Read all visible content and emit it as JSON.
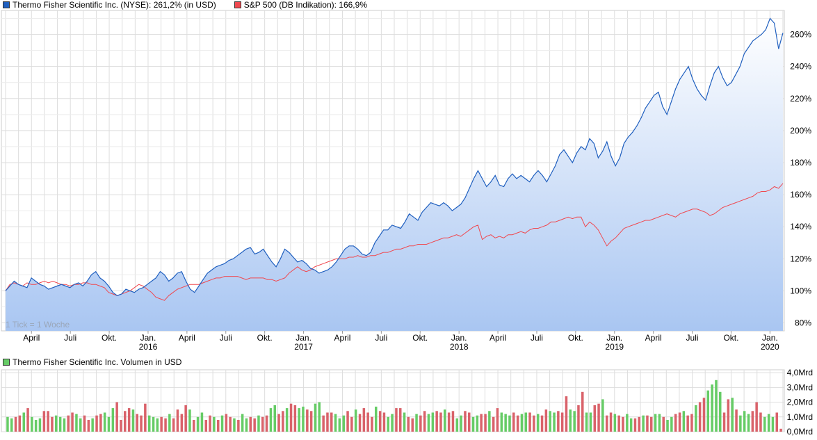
{
  "legend": {
    "series1": "Thermo Fisher Scientific Inc. (NYSE): 261,2% (in USD)",
    "series2": "S&P 500 (DB Indikation): 166,9%",
    "volume": "Thermo Fisher Scientific Inc. Volumen in USD"
  },
  "note": "1 Tick = 1 Woche",
  "colors": {
    "series1": "#1f5fbf",
    "series2": "#f0484f",
    "vol_up": "#66cc66",
    "vol_down": "#d9626a",
    "grid": "#dddddd"
  },
  "chart_data": [
    {
      "type": "area",
      "ylim": [
        75,
        275
      ],
      "ytick_labels": [
        "80%",
        "100%",
        "120%",
        "140%",
        "160%",
        "180%",
        "200%",
        "220%",
        "240%",
        "260%"
      ],
      "ytick_values": [
        80,
        100,
        120,
        140,
        160,
        180,
        200,
        220,
        240,
        260
      ],
      "xtick_months": [
        "April",
        "Juli",
        "Okt.",
        "Jan.",
        "April",
        "Juli",
        "Okt.",
        "Jan.",
        "April",
        "Juli",
        "Okt.",
        "Jan.",
        "April",
        "Juli",
        "Okt.",
        "Jan.",
        "April",
        "Juli",
        "Okt.",
        "Jan."
      ],
      "xtick_years": [
        "2016",
        "2017",
        "2018",
        "2019",
        "2020"
      ],
      "x_start": "2015-02",
      "x_end": "2020-02",
      "series": [
        {
          "name": "Thermo Fisher Scientific Inc. (NYSE): 261,2% (in USD)",
          "values": [
            100,
            103,
            106,
            104,
            103,
            102,
            108,
            106,
            104,
            103,
            101,
            102,
            103,
            104,
            103,
            102,
            104,
            105,
            103,
            106,
            110,
            112,
            108,
            106,
            103,
            99,
            97,
            98,
            101,
            100,
            99,
            101,
            102,
            104,
            106,
            108,
            112,
            110,
            106,
            108,
            111,
            112,
            106,
            101,
            99,
            103,
            107,
            111,
            113,
            115,
            116,
            117,
            119,
            120,
            122,
            124,
            126,
            127,
            123,
            124,
            126,
            122,
            118,
            115,
            120,
            126,
            124,
            121,
            118,
            119,
            117,
            114,
            113,
            111,
            112,
            113,
            115,
            118,
            122,
            126,
            128,
            128,
            126,
            123,
            122,
            124,
            130,
            134,
            138,
            138,
            141,
            140,
            139,
            143,
            148,
            146,
            144,
            149,
            152,
            155,
            154,
            153,
            155,
            153,
            150,
            152,
            154,
            158,
            164,
            170,
            175,
            170,
            165,
            168,
            172,
            166,
            165,
            170,
            173,
            170,
            172,
            170,
            168,
            172,
            175,
            172,
            168,
            173,
            178,
            185,
            188,
            184,
            180,
            186,
            190,
            188,
            195,
            192,
            183,
            187,
            193,
            184,
            178,
            183,
            192,
            196,
            199,
            203,
            208,
            214,
            218,
            222,
            224,
            215,
            210,
            218,
            226,
            232,
            236,
            240,
            232,
            226,
            222,
            219,
            228,
            236,
            240,
            233,
            228,
            230,
            235,
            240,
            248,
            252,
            256,
            258,
            260,
            263,
            270,
            267,
            251,
            261
          ]
        },
        {
          "name": "S&P 500 (DB Indikation): 166,9%",
          "values": [
            100,
            104,
            105,
            104,
            103,
            105,
            104,
            104,
            105,
            106,
            105,
            106,
            105,
            104,
            104,
            103,
            104,
            104,
            105,
            105,
            104,
            104,
            103,
            102,
            99,
            98,
            97,
            98,
            99,
            100,
            102,
            104,
            103,
            101,
            99,
            96,
            95,
            94,
            97,
            99,
            101,
            102,
            103,
            104,
            104,
            104,
            105,
            106,
            107,
            108,
            108,
            109,
            109,
            109,
            109,
            108,
            107,
            108,
            108,
            108,
            108,
            107,
            107,
            106,
            107,
            108,
            111,
            113,
            115,
            113,
            112,
            113,
            115,
            116,
            117,
            118,
            119,
            120,
            120,
            120,
            121,
            121,
            122,
            121,
            121,
            122,
            122,
            123,
            124,
            124,
            125,
            126,
            126,
            127,
            128,
            128,
            129,
            129,
            129,
            130,
            131,
            132,
            133,
            133,
            134,
            135,
            134,
            136,
            138,
            140,
            141,
            132,
            134,
            135,
            133,
            134,
            133,
            135,
            135,
            136,
            137,
            136,
            138,
            139,
            139,
            140,
            141,
            143,
            143,
            144,
            145,
            146,
            145,
            146,
            146,
            140,
            143,
            141,
            138,
            133,
            128,
            131,
            133,
            136,
            139,
            140,
            141,
            142,
            143,
            144,
            144,
            145,
            146,
            147,
            148,
            147,
            146,
            148,
            149,
            150,
            151,
            151,
            150,
            149,
            147,
            148,
            150,
            152,
            153,
            154,
            155,
            156,
            157,
            158,
            159,
            161,
            162,
            162,
            163,
            165,
            164,
            167
          ]
        }
      ]
    },
    {
      "type": "bar",
      "title": "Thermo Fisher Scientific Inc. Volumen in USD",
      "ylim": [
        0,
        4.2
      ],
      "ytick_labels": [
        "0,0Mrd",
        "1,0Mrd",
        "2,0Mrd",
        "3,0Mrd",
        "4,0Mrd"
      ],
      "ytick_values": [
        0,
        1,
        2,
        3,
        4
      ],
      "unit": "Mrd USD",
      "values": [
        1.0,
        0.9,
        1.0,
        1.1,
        1.3,
        1.6,
        1.0,
        0.8,
        0.9,
        1.4,
        1.4,
        1.0,
        1.1,
        1.0,
        0.9,
        1.1,
        1.3,
        1.2,
        0.9,
        1.1,
        0.8,
        0.9,
        1.1,
        1.2,
        1.3,
        1.0,
        1.6,
        2.0,
        0.8,
        1.4,
        1.6,
        1.5,
        1.2,
        1.1,
        1.9,
        1.1,
        1.0,
        0.9,
        1.0,
        0.9,
        1.2,
        0.9,
        1.5,
        1.2,
        1.8,
        1.5,
        0.8,
        1.0,
        1.3,
        0.8,
        1.1,
        1.0,
        0.8,
        1.1,
        1.2,
        1.0,
        0.9,
        0.8,
        1.2,
        0.9,
        1.0,
        0.9,
        1.1,
        1.0,
        1.1,
        1.6,
        1.8,
        1.2,
        1.4,
        1.6,
        1.9,
        1.8,
        1.6,
        1.7,
        1.5,
        1.4,
        1.9,
        2.0,
        1.1,
        1.3,
        1.3,
        1.2,
        0.9,
        1.1,
        1.4,
        1.0,
        1.5,
        1.2,
        1.6,
        1.3,
        1.0,
        1.7,
        1.4,
        1.3,
        1.0,
        1.2,
        1.6,
        1.6,
        1.3,
        1.0,
        0.9,
        1.2,
        1.1,
        1.4,
        1.2,
        1.3,
        1.4,
        1.3,
        1.5,
        1.3,
        1.4,
        0.9,
        1.1,
        1.4,
        1.3,
        1.0,
        1.1,
        1.2,
        1.2,
        1.4,
        1.0,
        1.6,
        1.3,
        1.2,
        1.1,
        1.3,
        1.1,
        1.2,
        1.3,
        1.3,
        1.1,
        1.2,
        1.1,
        1.5,
        1.4,
        1.3,
        1.4,
        1.3,
        2.4,
        1.5,
        1.4,
        1.8,
        2.7,
        1.3,
        1.3,
        1.8,
        1.9,
        2.2,
        1.1,
        1.3,
        1.2,
        1.1,
        1.0,
        1.2,
        0.9,
        0.9,
        1.0,
        1.1,
        1.1,
        1.0,
        1.2,
        1.2,
        1.0,
        0.8,
        1.0,
        1.2,
        1.3,
        1.4,
        1.1,
        1.2,
        1.8,
        2.0,
        2.3,
        2.8,
        3.2,
        3.5,
        2.7,
        1.3,
        2.2,
        2.3,
        1.5,
        1.1,
        1.4,
        1.2,
        1.4,
        2.0,
        1.3,
        1.0,
        1.2,
        1.0,
        1.3,
        0.2
      ],
      "directions": "uudduduuuddduuudduuddudduuudddduddduuuddudddduduuddududduduuddudduuddudduudduuddduuudduddddudduudduddudduuddudduudduuddudduuudduuddudduuddduudduudduddudduuddudduuduudduddudduu"
    }
  ]
}
